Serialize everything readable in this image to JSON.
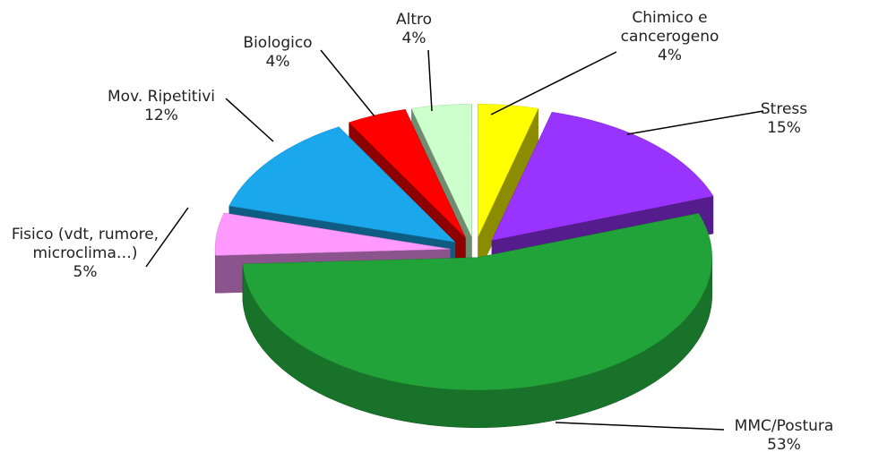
{
  "chart_data": {
    "type": "pie3d",
    "categories": [
      "Chimico e cancerogeno",
      "Stress",
      "MMC/Postura",
      "Fisico (vdt, rumore, microclima…)",
      "Mov. Ripetitivi",
      "Biologico",
      "Altro"
    ],
    "values": [
      4,
      15,
      53,
      5,
      12,
      4,
      4
    ],
    "value_labels": [
      "4%",
      "15%",
      "53%",
      "5%",
      "12%",
      "4%",
      "4%"
    ],
    "colors": [
      "#ffff00",
      "#9933ff",
      "#22a33a",
      "#ff99ff",
      "#1aa7ec",
      "#ff0000",
      "#ccffcc"
    ]
  }
}
